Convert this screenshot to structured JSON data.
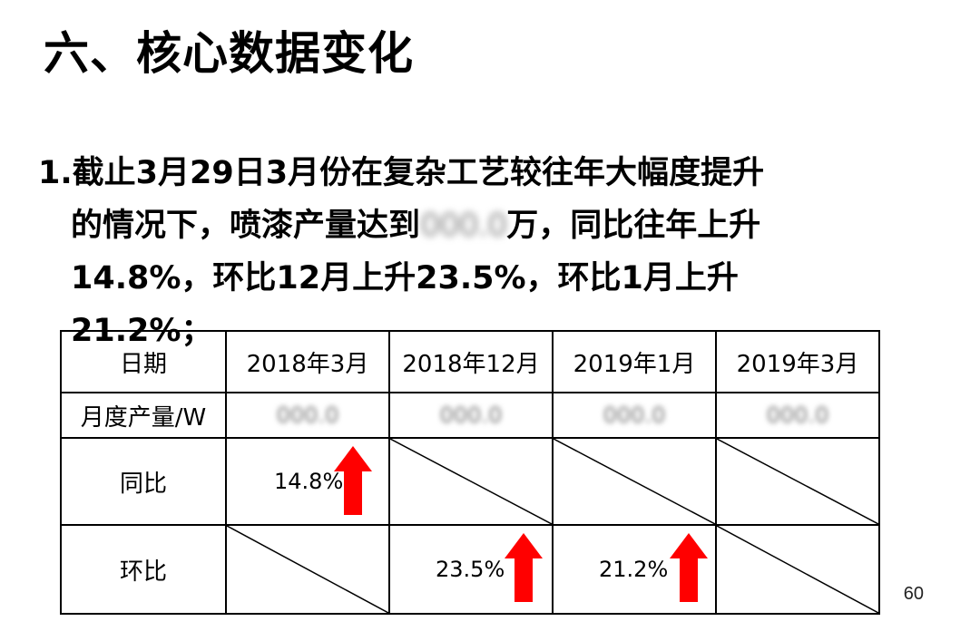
{
  "title": "六、核心数据变化",
  "paragraph": {
    "line1": "1.截止3月29日3月份在复杂工艺较往年大幅度提升",
    "line2_before": "的情况下，喷漆产量达到",
    "line2_redacted": "000.0",
    "line2_after": "万，同比往年上升",
    "line3": "14.8%，环比12月上升23.5%，环比1月上升",
    "line4": "21.2%；"
  },
  "table": {
    "headers": [
      "日期",
      "2018年3月",
      "2018年12月",
      "2019年1月",
      "2019年3月"
    ],
    "row_output_label": "月度产量/W",
    "row_output_values": [
      "000.0",
      "000.0",
      "000.0",
      "000.0"
    ],
    "row_yoy_label": "同比",
    "row_yoy_value": "14.8%",
    "row_mom_label": "环比",
    "row_mom_value_dec": "23.5%",
    "row_mom_value_jan": "21.2%"
  },
  "colors": {
    "arrow": "#ff0000",
    "border": "#000000"
  },
  "icons": {
    "up": "up-arrow-icon"
  },
  "page_number": "60"
}
